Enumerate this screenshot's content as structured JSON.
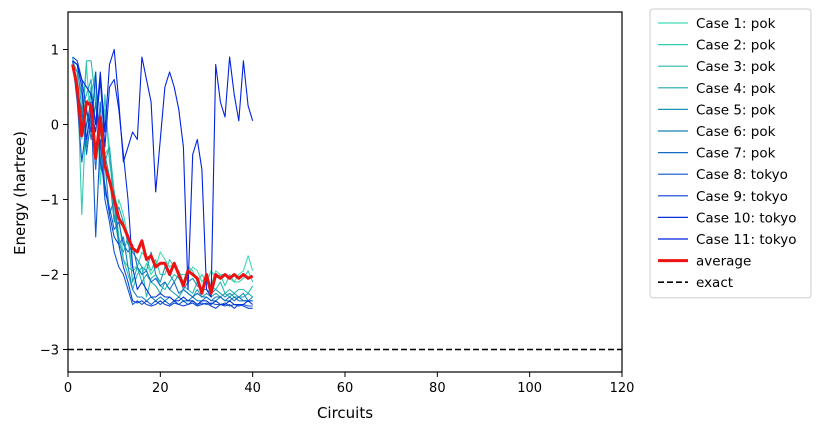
{
  "chart_data": {
    "type": "line",
    "title": "",
    "xlabel": "Circuits",
    "ylabel": "Energy (hartree)",
    "xlim": [
      0,
      120
    ],
    "ylim": [
      -3.3,
      1.5
    ],
    "xticks": [
      0,
      20,
      40,
      60,
      80,
      100,
      120
    ],
    "yticks": [
      -3,
      -2,
      -1,
      0,
      1
    ],
    "grid": false,
    "legend_position": "outside-right-top",
    "x": [
      1,
      2,
      3,
      4,
      5,
      6,
      7,
      8,
      9,
      10,
      11,
      12,
      13,
      14,
      15,
      16,
      17,
      18,
      19,
      20,
      21,
      22,
      23,
      24,
      25,
      26,
      27,
      28,
      29,
      30,
      31,
      32,
      33,
      34,
      35,
      36,
      37,
      38,
      39,
      40
    ],
    "series": [
      {
        "name": "Case 1: pok",
        "color": "#3ddcb4",
        "values": [
          0.8,
          0.6,
          -0.2,
          0.8,
          -0.1,
          0.6,
          -0.8,
          0.2,
          -0.3,
          -1.3,
          -1.0,
          -1.2,
          -1.5,
          -1.9,
          -1.9,
          -2.0,
          -1.85,
          -2.0,
          -1.9,
          -1.7,
          -1.8,
          -1.9,
          -1.85,
          -2.0,
          -2.0,
          -2.0,
          -1.9,
          -1.95,
          -2.1,
          -2.0,
          -2.15,
          -1.95,
          -2.0,
          -2.0,
          -2.05,
          -2.1,
          -2.0,
          -1.95,
          -1.75,
          -1.95
        ]
      },
      {
        "name": "Case 2: pok",
        "color": "#32ccb0",
        "values": [
          0.85,
          0.7,
          -1.2,
          0.3,
          0.4,
          0.7,
          -0.6,
          0.4,
          -0.5,
          -0.9,
          -1.2,
          -1.8,
          -1.9,
          -1.95,
          -1.9,
          -1.7,
          -1.8,
          -1.95,
          -1.8,
          -2.0,
          -2.0,
          -1.8,
          -1.9,
          -1.95,
          -2.1,
          -1.9,
          -1.95,
          -2.1,
          -2.0,
          -2.1,
          -1.95,
          -2.05,
          -2.0,
          -2.15,
          -2.0,
          -2.1,
          -2.1,
          -2.05,
          -1.95,
          -2.1
        ]
      },
      {
        "name": "Case 3: pok",
        "color": "#29bcb2",
        "values": [
          0.9,
          0.5,
          0.0,
          0.85,
          0.85,
          0.3,
          -0.6,
          -0.4,
          -0.3,
          -0.9,
          -1.5,
          -1.8,
          -2.0,
          -2.2,
          -2.0,
          -1.9,
          -2.3,
          -2.05,
          -2.0,
          -2.15,
          -2.2,
          -2.1,
          -2.0,
          -2.05,
          -2.15,
          -2.2,
          -2.25,
          -2.1,
          -2.2,
          -2.1,
          -2.15,
          -2.2,
          -2.1,
          -2.25,
          -2.2,
          -2.25,
          -2.2,
          -2.2,
          -2.25,
          -2.15
        ]
      },
      {
        "name": "Case 4: pok",
        "color": "#21a8b4",
        "values": [
          0.85,
          0.8,
          0.2,
          0.4,
          0.6,
          -0.4,
          -0.1,
          -0.5,
          -0.3,
          -1.2,
          -1.6,
          -1.7,
          -1.5,
          -2.1,
          -1.9,
          -2.1,
          -2.0,
          -2.1,
          -2.15,
          -2.25,
          -2.1,
          -2.2,
          -2.25,
          -2.3,
          -2.2,
          -2.25,
          -2.3,
          -2.2,
          -2.3,
          -2.25,
          -2.3,
          -2.25,
          -2.3,
          -2.25,
          -2.3,
          -2.25,
          -2.3,
          -2.3,
          -2.25,
          -2.3
        ]
      },
      {
        "name": "Case 5: pok",
        "color": "#1b94b8",
        "values": [
          0.8,
          0.7,
          0.4,
          -0.3,
          0.5,
          0.0,
          0.1,
          -0.4,
          -0.7,
          -1.3,
          -1.1,
          -1.3,
          -1.6,
          -1.7,
          -1.8,
          -1.9,
          -1.95,
          -1.7,
          -2.0,
          -2.1,
          -1.9,
          -2.0,
          -2.1,
          -2.0,
          -2.2,
          -2.1,
          -2.05,
          -2.15,
          -2.2,
          -2.2,
          -2.25,
          -2.2,
          -2.25,
          -2.3,
          -2.25,
          -2.3,
          -2.3,
          -2.25,
          -2.35,
          -2.3
        ]
      },
      {
        "name": "Case 6: pok",
        "color": "#1580b8",
        "values": [
          0.75,
          0.5,
          0.1,
          0.2,
          -0.2,
          0.3,
          -0.3,
          -0.5,
          -1.2,
          -1.0,
          -1.6,
          -1.5,
          -1.9,
          -2.2,
          -2.3,
          -2.3,
          -2.35,
          -2.3,
          -2.35,
          -2.3,
          -2.35,
          -2.3,
          -2.35,
          -2.3,
          -2.35,
          -2.35,
          -2.3,
          -2.35,
          -2.35,
          -2.3,
          -2.35,
          -2.35,
          -2.3,
          -2.35,
          -2.35,
          -2.3,
          -2.35,
          -2.35,
          -2.35,
          -2.35
        ]
      },
      {
        "name": "Case 7: pok",
        "color": "#126cc4",
        "values": [
          0.8,
          0.4,
          0.2,
          -0.4,
          0.1,
          -0.6,
          0.3,
          -0.9,
          -1.1,
          -1.4,
          -1.3,
          -1.6,
          -1.7,
          -1.6,
          -1.9,
          -2.0,
          -1.95,
          -2.1,
          -2.05,
          -2.15,
          -2.1,
          -2.2,
          -2.1,
          -2.25,
          -2.2,
          -2.25,
          -2.3,
          -2.25,
          -2.3,
          -2.3,
          -2.35,
          -2.3,
          -2.3,
          -2.35,
          -2.3,
          -2.35,
          -2.3,
          -2.35,
          -2.35,
          -2.35
        ]
      },
      {
        "name": "Case 8: tokyo",
        "color": "#0e58cc",
        "values": [
          0.85,
          0.3,
          -0.5,
          0.0,
          0.3,
          -1.5,
          -0.2,
          -1.0,
          -1.3,
          -1.7,
          -1.9,
          -2.0,
          -2.2,
          -2.4,
          -2.35,
          -2.4,
          -2.35,
          -2.4,
          -2.35,
          -2.4,
          -2.35,
          -2.4,
          -2.35,
          -2.4,
          -2.35,
          -2.4,
          -2.35,
          -2.4,
          -2.38,
          -2.4,
          -2.38,
          -2.4,
          -2.4,
          -2.38,
          -2.42,
          -2.4,
          -2.42,
          -2.4,
          -2.42,
          -2.42
        ]
      },
      {
        "name": "Case 9: tokyo",
        "color": "#0a44d4",
        "values": [
          0.9,
          0.85,
          0.6,
          0.2,
          -0.1,
          0.7,
          -0.5,
          -0.8,
          -1.2,
          -1.5,
          -1.6,
          -1.9,
          -2.1,
          -2.35,
          -2.38,
          -2.35,
          -2.4,
          -2.42,
          -2.4,
          -2.35,
          -2.4,
          -2.42,
          -2.38,
          -2.4,
          -2.42,
          -2.4,
          -2.38,
          -2.42,
          -2.4,
          -2.38,
          -2.42,
          -2.45,
          -2.4,
          -2.42,
          -2.4,
          -2.45,
          -2.4,
          -2.42,
          -2.45,
          -2.45
        ]
      },
      {
        "name": "Case 10: tokyo",
        "color": "#0632dc",
        "values": [
          0.85,
          0.8,
          0.5,
          -0.2,
          0.2,
          -0.1,
          0.6,
          -0.3,
          0.5,
          0.6,
          0.2,
          -0.4,
          -1.0,
          -1.9,
          -2.2,
          -2.1,
          -2.2,
          -2.3,
          -2.3,
          -2.25,
          -2.3,
          -2.3,
          -2.35,
          -2.35,
          -2.3,
          -2.35,
          -2.35,
          -2.4,
          -2.35,
          -2.35,
          -2.4,
          -2.35,
          -2.4,
          -2.4,
          -2.35,
          -2.4,
          -2.4,
          -2.4,
          -2.35,
          -2.4
        ]
      },
      {
        "name": "Case 11: tokyo",
        "color": "#0222e0",
        "values": [
          0.85,
          0.8,
          0.6,
          0.5,
          0.4,
          0.0,
          0.7,
          -0.1,
          0.8,
          1.0,
          0.3,
          -0.5,
          -0.3,
          -0.1,
          -0.2,
          0.9,
          0.6,
          0.3,
          -0.9,
          -0.2,
          0.5,
          0.7,
          0.5,
          0.2,
          -0.3,
          -2.2,
          -0.4,
          -0.2,
          -0.6,
          -2.2,
          -2.3,
          0.8,
          0.3,
          0.1,
          0.9,
          0.4,
          0.05,
          0.85,
          0.25,
          0.05
        ]
      },
      {
        "name": "average",
        "color": "#ee1111",
        "values": [
          0.8,
          0.5,
          -0.15,
          0.3,
          0.25,
          -0.45,
          0.1,
          -0.55,
          -0.75,
          -1.0,
          -1.25,
          -1.35,
          -1.5,
          -1.65,
          -1.7,
          -1.55,
          -1.8,
          -1.75,
          -1.9,
          -1.85,
          -1.85,
          -2.0,
          -1.85,
          -2.0,
          -2.15,
          -1.95,
          -2.0,
          -2.05,
          -2.25,
          -2.0,
          -2.25,
          -2.0,
          -2.05,
          -2.0,
          -2.05,
          -2.0,
          -2.05,
          -2.0,
          -2.05,
          -2.02
        ]
      }
    ],
    "reference_lines": [
      {
        "name": "exact",
        "y": -3.0,
        "color": "#000000",
        "style": "dashed"
      }
    ]
  }
}
